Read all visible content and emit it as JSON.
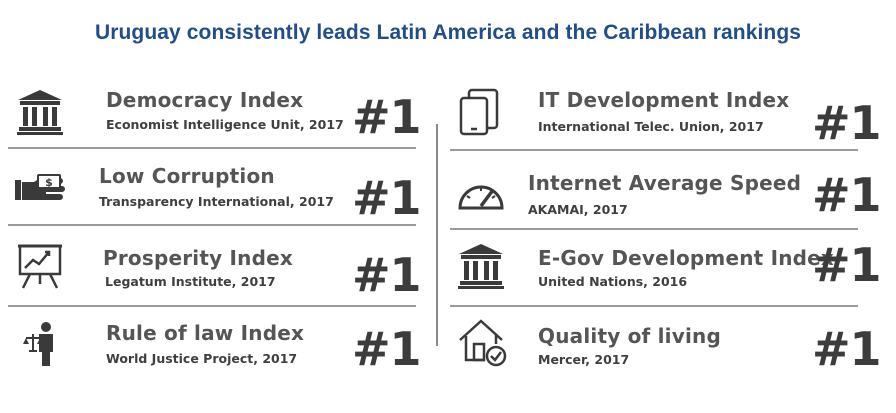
{
  "title": "Uruguay consistently leads Latin America and the Caribbean rankings",
  "left": [
    {
      "name": "Democracy Index",
      "source": "Economist Intelligence Unit, 2017",
      "rank": "#1",
      "icon": "institution-icon"
    },
    {
      "name": "Low Corruption",
      "source": "Transparency International, 2017",
      "rank": "#1",
      "icon": "money-hand-icon"
    },
    {
      "name": "Prosperity Index",
      "source": "Legatum Institute, 2017",
      "rank": "#1",
      "icon": "chart-board-icon"
    },
    {
      "name": "Rule of law Index",
      "source": "World Justice Project, 2017",
      "rank": "#1",
      "icon": "justice-person-icon"
    }
  ],
  "right": [
    {
      "name": "IT Development Index",
      "source": "International Telec. Union, 2017",
      "rank": "#1",
      "icon": "devices-icon"
    },
    {
      "name": "Internet Average Speed",
      "source": "AKAMAI, 2017",
      "rank": "#1",
      "icon": "speedometer-icon"
    },
    {
      "name": "E-Gov Development Index",
      "source": "United Nations, 2016",
      "rank": "#1",
      "icon": "institution-icon"
    },
    {
      "name": "Quality of living",
      "source": "Mercer, 2017",
      "rank": "#1",
      "icon": "house-check-icon"
    }
  ],
  "colors": {
    "title": "#1f4e8a",
    "text": "#555555",
    "icon": "#3a3a3a"
  }
}
